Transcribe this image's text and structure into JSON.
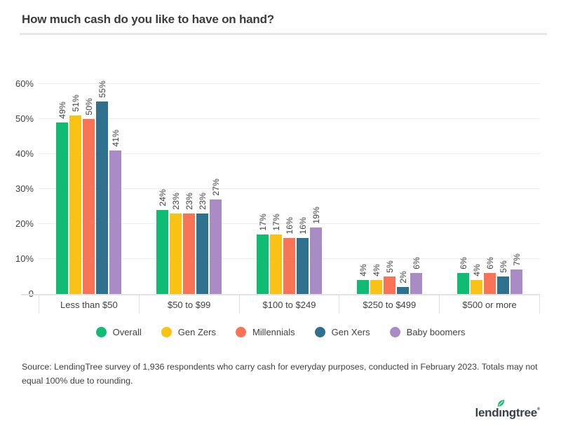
{
  "header": {
    "title": "How much cash do you like to have on hand?"
  },
  "chart_data": {
    "type": "bar",
    "title": "How much cash do you like to have on hand?",
    "categories": [
      "Less than $50",
      "$50 to $99",
      "$100 to $249",
      "$250 to $499",
      "$500 or more"
    ],
    "series": [
      {
        "name": "Overall",
        "color": "#10bc74",
        "values": [
          49,
          24,
          17,
          4,
          6
        ]
      },
      {
        "name": "Gen Zers",
        "color": "#f9c315",
        "values": [
          51,
          23,
          17,
          4,
          4
        ]
      },
      {
        "name": "Millennials",
        "color": "#f97457",
        "values": [
          50,
          23,
          16,
          5,
          6
        ]
      },
      {
        "name": "Gen Xers",
        "color": "#2f708f",
        "values": [
          55,
          23,
          16,
          2,
          5
        ]
      },
      {
        "name": "Baby boomers",
        "color": "#a98bc6",
        "values": [
          41,
          27,
          19,
          6,
          7
        ]
      }
    ],
    "value_suffix": "%",
    "bar_label_rotation": -90,
    "y_axis": {
      "ticks": [
        0,
        10,
        20,
        30,
        40,
        50,
        60
      ],
      "tick_labels": [
        "0",
        "10%",
        "20%",
        "30%",
        "40%",
        "50%",
        "60%"
      ],
      "max": 60
    },
    "ylim": [
      0,
      62
    ],
    "grid": true,
    "legend_position": "bottom"
  },
  "footer": {
    "source": "Source: LendingTree survey of 1,936 respondents who carry cash for everyday purposes, conducted in February 2023. Totals may not equal 100% due to rounding."
  },
  "logo": {
    "part_lead": "lend",
    "part_dotless_i": "ı",
    "part_tail": "ngtree",
    "trademark": "®",
    "leaf_color": "#1fb871",
    "text_color": "#3a4045"
  }
}
